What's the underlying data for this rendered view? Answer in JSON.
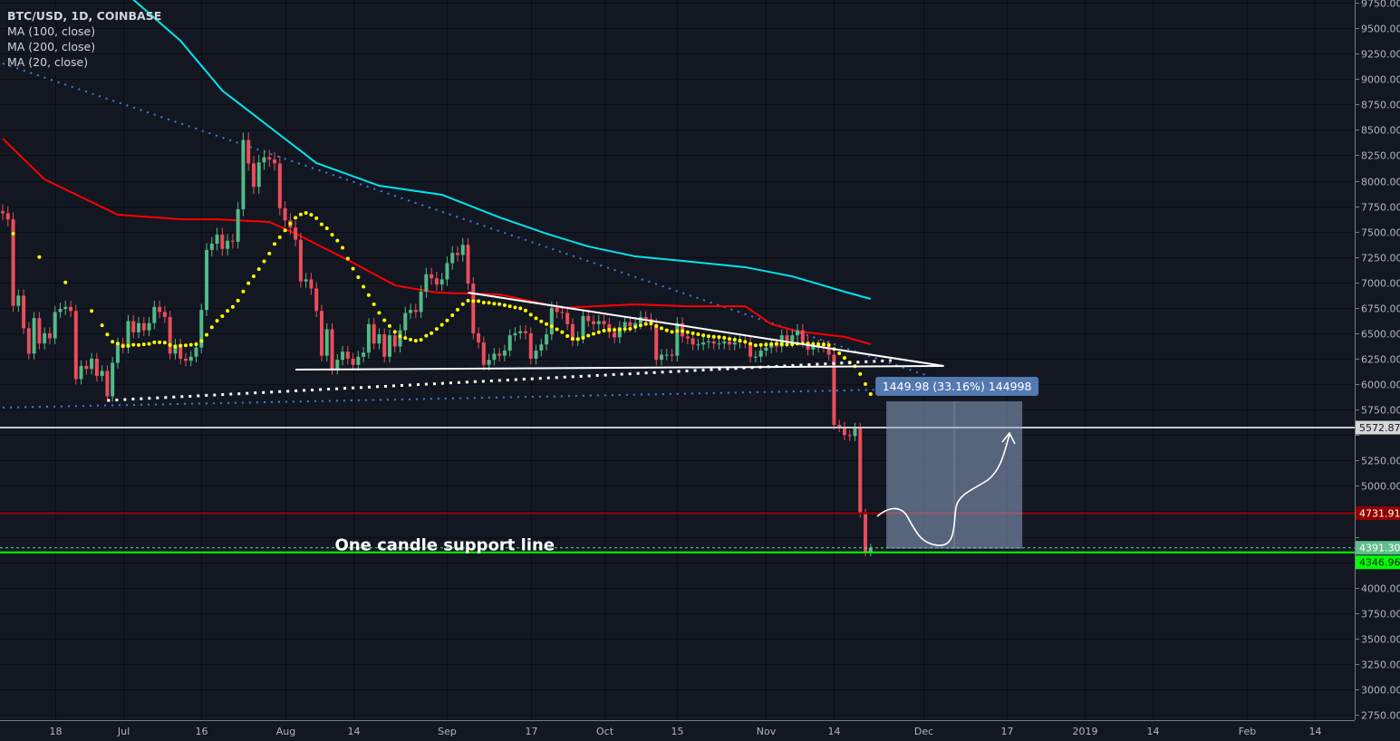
{
  "legend": {
    "symbol": "BTC/USD, 1D, COINBASE",
    "indicators": [
      "MA (100, close)",
      "MA (200, close)",
      "MA (20, close)"
    ]
  },
  "colors": {
    "background": "#131722",
    "grid": "#0b0d12",
    "up": "#53b987",
    "down": "#eb4d5c",
    "ma20": "#ffff00",
    "ma100": "#ff0000",
    "ma200": "#00e5ee",
    "trendline": "#ffffff",
    "blue_dotted": "#3f7fe0",
    "range_box": "#8fa6c7"
  },
  "chart_data": {
    "type": "candlestick",
    "symbol": "BTC/USD",
    "interval": "1D",
    "exchange": "COINBASE",
    "ylim": [
      2750,
      9750
    ],
    "y_tick_step": 250,
    "xlim": [
      "2018-06-08",
      "2019-02-21"
    ],
    "grid": true,
    "closes_by_month": [
      {
        "month": "2018-06",
        "first_day": 8,
        "closes": [
          7680,
          7620,
          6770,
          6870,
          6550,
          6300,
          6650,
          6400,
          6500,
          6450,
          6710,
          6740,
          6760,
          6720,
          6050,
          6180,
          6150,
          6250,
          6080,
          6130,
          5880,
          6210,
          6400
        ]
      },
      {
        "month": "2018-07",
        "first_day": 1,
        "closes": [
          6360,
          6620,
          6510,
          6600,
          6530,
          6600,
          6760,
          6710,
          6660,
          6300,
          6390,
          6250,
          6230,
          6270,
          6360,
          6730,
          7320,
          7380,
          7470,
          7330,
          7410,
          7400,
          7720,
          8400,
          8170,
          7940,
          8180,
          8230,
          8210,
          8170,
          7730
        ]
      },
      {
        "month": "2018-08",
        "first_day": 1,
        "closes": [
          7610,
          7540,
          7420,
          7010,
          7030,
          6940,
          6720,
          6280,
          6540,
          6150,
          6240,
          6320,
          6250,
          6190,
          6270,
          6310,
          6590,
          6400,
          6490,
          6270,
          6480,
          6370,
          6530,
          6700,
          6730,
          6710,
          6910,
          7080,
          7040,
          6980,
          7030
        ]
      },
      {
        "month": "2018-09",
        "first_day": 1,
        "closes": [
          7190,
          7290,
          7270,
          7370,
          6990,
          6500,
          6410,
          6190,
          6240,
          6300,
          6280,
          6330,
          6480,
          6500,
          6520,
          6500,
          6250,
          6330,
          6390,
          6490,
          6750,
          6710,
          6700,
          6590,
          6430,
          6460,
          6670,
          6620,
          6590,
          6620
        ]
      },
      {
        "month": "2018-10",
        "first_day": 1,
        "closes": [
          6590,
          6510,
          6460,
          6560,
          6610,
          6570,
          6600,
          6660,
          6640,
          6590,
          6240,
          6290,
          6290,
          6280,
          6600,
          6470,
          6450,
          6390,
          6390,
          6410,
          6420,
          6400,
          6400,
          6420,
          6390,
          6410,
          6420,
          6410,
          6270,
          6270,
          6330
        ]
      },
      {
        "month": "2018-11",
        "first_day": 1,
        "closes": [
          6360,
          6390,
          6370,
          6480,
          6420,
          6480,
          6530,
          6420,
          6340,
          6370,
          6380,
          6370,
          6290,
          5600,
          5580,
          5500,
          5490,
          5570,
          4731.91,
          4346.96,
          4391.3
        ]
      }
    ],
    "ma20_early": [
      [
        "2018-06-10",
        7480
      ],
      [
        "2018-06-15",
        7250
      ],
      [
        "2018-06-20",
        7000
      ],
      [
        "2018-06-25",
        6720
      ]
    ],
    "ma100": [
      [
        "2018-06-08",
        8414
      ],
      [
        "2018-06-16",
        8013
      ],
      [
        "2018-06-30",
        7666
      ],
      [
        "2018-07-12",
        7622
      ],
      [
        "2018-07-19",
        7620
      ],
      [
        "2018-07-29",
        7595
      ],
      [
        "2018-08-03",
        7480
      ],
      [
        "2018-08-14",
        7194
      ],
      [
        "2018-08-22",
        6972
      ],
      [
        "2018-08-30",
        6900
      ],
      [
        "2018-09-11",
        6882
      ],
      [
        "2018-09-23",
        6750
      ],
      [
        "2018-10-07",
        6784
      ],
      [
        "2018-10-17",
        6766
      ],
      [
        "2018-10-28",
        6766
      ],
      [
        "2018-11-02",
        6590
      ],
      [
        "2018-11-07",
        6520
      ],
      [
        "2018-11-16",
        6465
      ],
      [
        "2018-11-21",
        6393
      ]
    ],
    "ma200": [
      [
        "2018-07-03",
        9780
      ],
      [
        "2018-07-12",
        9376
      ],
      [
        "2018-07-20",
        8886
      ],
      [
        "2018-07-29",
        8530
      ],
      [
        "2018-08-07",
        8174
      ],
      [
        "2018-08-19",
        7951
      ],
      [
        "2018-08-31",
        7862
      ],
      [
        "2018-09-11",
        7640
      ],
      [
        "2018-09-20",
        7480
      ],
      [
        "2018-09-28",
        7354
      ],
      [
        "2018-10-07",
        7256
      ],
      [
        "2018-10-16",
        7212
      ],
      [
        "2018-10-28",
        7150
      ],
      [
        "2018-11-06",
        7060
      ],
      [
        "2018-11-16",
        6909
      ],
      [
        "2018-11-21",
        6838
      ]
    ],
    "x_ticks": [
      [
        "2018-06-18",
        "18"
      ],
      [
        "2018-07-01",
        "Jul"
      ],
      [
        "2018-07-16",
        "16"
      ],
      [
        "2018-08-01",
        "Aug"
      ],
      [
        "2018-08-14",
        "14"
      ],
      [
        "2018-09-01",
        "Sep"
      ],
      [
        "2018-09-17",
        "17"
      ],
      [
        "2018-10-01",
        "Oct"
      ],
      [
        "2018-10-15",
        "15"
      ],
      [
        "2018-11-01",
        "Nov"
      ],
      [
        "2018-11-14",
        "14"
      ],
      [
        "2018-12-01",
        "Dec"
      ],
      [
        "2018-12-17",
        "17"
      ],
      [
        "2019-01-01",
        "2019"
      ],
      [
        "2019-01-14",
        "14"
      ],
      [
        "2019-02-01",
        "Feb"
      ],
      [
        "2019-02-14",
        "14"
      ]
    ],
    "drawings": {
      "triangle_upper": [
        [
          "2018-09-05",
          6900
        ],
        [
          "2018-12-05",
          6179
        ]
      ],
      "triangle_lower": [
        [
          "2018-08-03",
          6143
        ],
        [
          "2018-12-05",
          6179
        ]
      ],
      "white_dotted": [
        [
          "2018-06-28",
          5840
        ],
        [
          "2018-11-25",
          6233
        ]
      ],
      "blue_dotted_diagonal": [
        [
          "2018-06-08",
          9153
        ],
        [
          "2018-12-02",
          6081
        ]
      ],
      "blue_dotted_flat": [
        [
          "2018-06-08",
          5770
        ],
        [
          "2018-11-25",
          5948
        ]
      ]
    },
    "horizontal_lines": [
      {
        "price": 5572.87,
        "label": "5572.87",
        "color": "#c8c8c8",
        "label_bg": "#d6d6d6",
        "label_fg": "#131722"
      },
      {
        "price": 4731.91,
        "label": "4731.91",
        "color": "#9b0000",
        "label_bg": "#8e0000",
        "label_fg": "#ffffff"
      },
      {
        "price": 4346.96,
        "label": "4346.96",
        "color": "#00ff00",
        "label_bg": "#00ff00",
        "label_fg": "#131722"
      },
      {
        "price": 4391.3,
        "label": "4391.30",
        "color": "#6ec9c0",
        "label_bg": "#5fbf8c",
        "label_fg": "#ffffff",
        "dashed": true
      }
    ],
    "price_range": {
      "from_date": "2018-11-24",
      "to_date": "2018-12-20",
      "low": 4382,
      "high": 5832,
      "label": "1449.98 (33.16%) 144998"
    },
    "annotation": {
      "text": "One candle support line",
      "date": "2018-08-23",
      "price": 4440
    }
  }
}
